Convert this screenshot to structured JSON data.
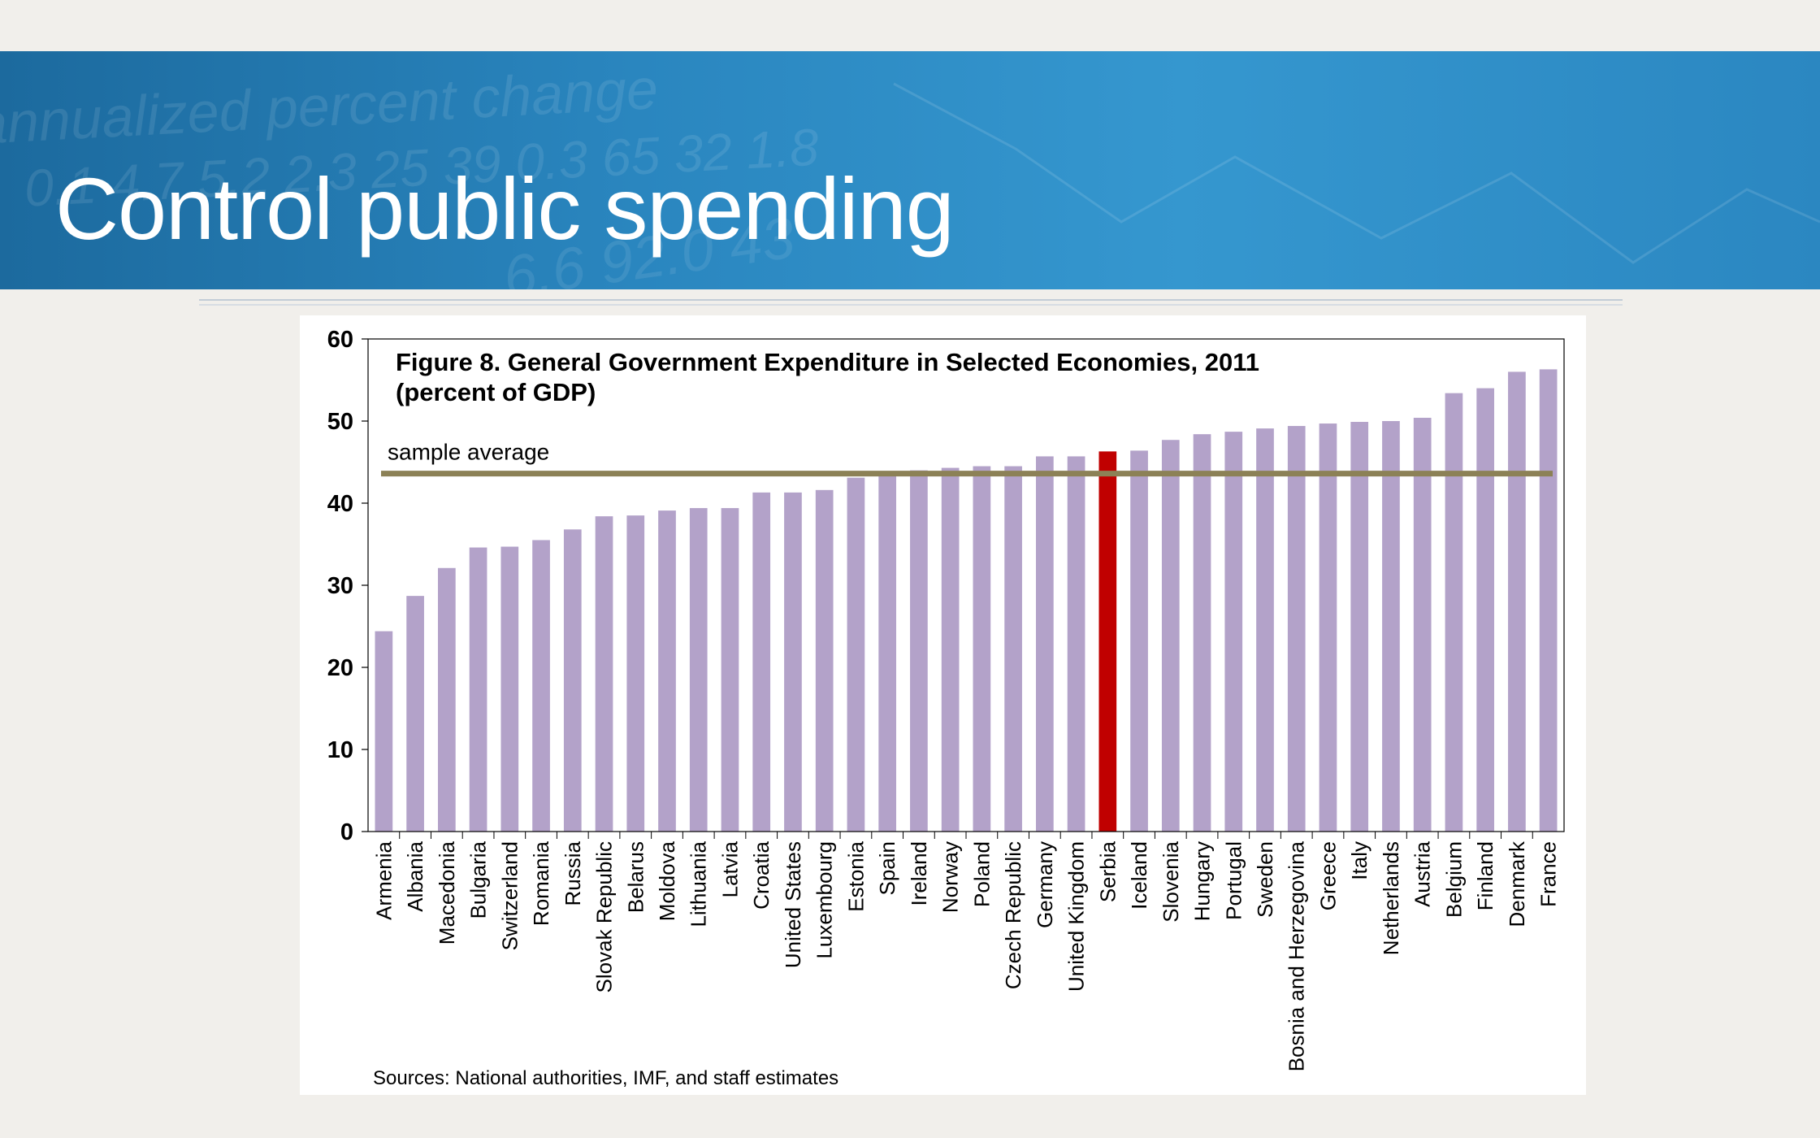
{
  "slide": {
    "title": "Control public spending",
    "banner_texture_text": [
      "annualized percent change",
      "0.1  4.7  5.2  2.3  25  39  0.3  65  32  1.8",
      "6.6  92.0  43"
    ]
  },
  "colors": {
    "bar": "#b3a2c9",
    "highlight_bar": "#c00000",
    "average_line": "#8c8156",
    "banner": "#2a86bf"
  },
  "chart_data": {
    "type": "bar",
    "title": "Figure 8. General Government Expenditure in Selected Economies, 2011",
    "subtitle": "(percent of GDP)",
    "source": "Sources: National authorities, IMF, and staff estimates",
    "ylim": [
      0,
      60
    ],
    "yticks": [
      0,
      10,
      20,
      30,
      40,
      50,
      60
    ],
    "grid": false,
    "highlight": "Serbia",
    "reference_line": {
      "label": "sample average",
      "value": 43.6
    },
    "categories": [
      "Armenia",
      "Albania",
      "Macedonia",
      "Bulgaria",
      "Switzerland",
      "Romania",
      "Russia",
      "Slovak Republic",
      "Belarus",
      "Moldova",
      "Lithuania",
      "Latvia",
      "Croatia",
      "United States",
      "Luxembourg",
      "Estonia",
      "Spain",
      "Ireland",
      "Norway",
      "Poland",
      "Czech Republic",
      "Germany",
      "United Kingdom",
      "Serbia",
      "Iceland",
      "Slovenia",
      "Hungary",
      "Portugal",
      "Sweden",
      "Bosnia and Herzegovina",
      "Greece",
      "Italy",
      "Netherlands",
      "Austria",
      "Belgium",
      "Finland",
      "Denmark",
      "France"
    ],
    "values": [
      24.4,
      28.7,
      32.1,
      34.6,
      34.7,
      35.5,
      36.8,
      38.4,
      38.5,
      39.1,
      39.4,
      39.4,
      41.3,
      41.3,
      41.6,
      43.1,
      43.6,
      44.0,
      44.3,
      44.5,
      44.5,
      45.7,
      45.7,
      46.3,
      46.4,
      47.7,
      48.4,
      48.7,
      49.1,
      49.4,
      49.7,
      49.9,
      50.0,
      50.4,
      53.4,
      54.0,
      56.0,
      56.3
    ]
  }
}
